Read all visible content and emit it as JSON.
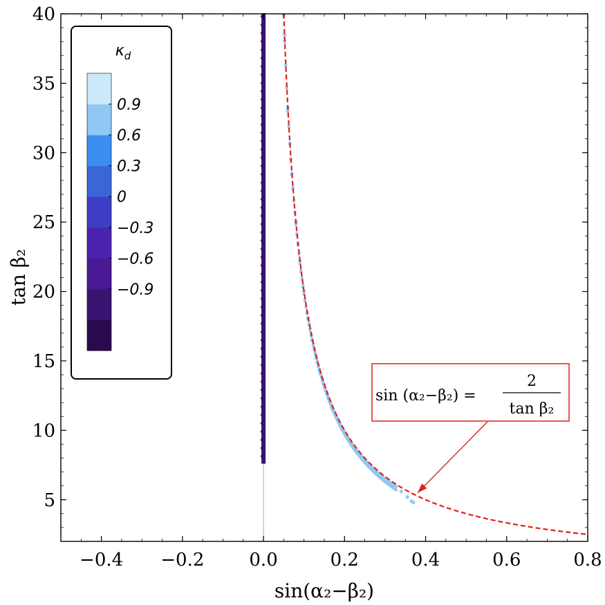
{
  "chart_data": {
    "type": "scatter",
    "xlabel": "sin(α₂−β₂)",
    "ylabel": "tan β₂",
    "xlim": [
      -0.5,
      0.8
    ],
    "ylim": [
      2.0,
      40.0
    ],
    "x_ticks": [
      -0.4,
      -0.2,
      0.0,
      0.2,
      0.4,
      0.6,
      0.8
    ],
    "x_tick_labels": [
      "−0.4",
      "−0.2",
      "0.0",
      "0.2",
      "0.4",
      "0.6",
      "0.8"
    ],
    "y_ticks": [
      5,
      10,
      15,
      20,
      25,
      30,
      35,
      40
    ],
    "y_tick_labels": [
      "5",
      "10",
      "15",
      "20",
      "25",
      "30",
      "35",
      "40"
    ],
    "grid": false,
    "legend": {
      "title": "κ_d",
      "placement": "top-left",
      "colors": [
        "#2b0a4f",
        "#3a1270",
        "#4a1a96",
        "#4a22b0",
        "#3f3fc6",
        "#3b66d8",
        "#3b8ff0",
        "#90c8f4",
        "#cce9fb"
      ],
      "tick_labels": [
        "0.9",
        "0.6",
        "0.3",
        "0",
        "−0.3",
        "−0.6",
        "−0.9"
      ]
    },
    "series": [
      {
        "points": {
          "x": 0.0,
          "y_range": [
            7.6,
            40.0
          ]
        },
        "color": "#3a1270",
        "kappa_d": -1.0
      },
      {
        "points": [
          [
            0.052,
            38.5
          ],
          [
            0.06,
            33
          ],
          [
            0.07,
            28.5
          ],
          [
            0.08,
            25
          ],
          [
            0.09,
            22.2
          ],
          [
            0.1,
            20
          ],
          [
            0.11,
            18.1
          ],
          [
            0.12,
            16.5
          ],
          [
            0.13,
            15.2
          ],
          [
            0.14,
            14.1
          ],
          [
            0.15,
            13.1
          ],
          [
            0.16,
            12.3
          ],
          [
            0.17,
            11.5
          ],
          [
            0.18,
            10.9
          ],
          [
            0.19,
            10.3
          ],
          [
            0.2,
            9.8
          ],
          [
            0.21,
            9.3
          ],
          [
            0.22,
            8.9
          ],
          [
            0.23,
            8.5
          ],
          [
            0.24,
            8.1
          ],
          [
            0.25,
            7.8
          ],
          [
            0.26,
            7.5
          ],
          [
            0.27,
            7.2
          ],
          [
            0.28,
            6.9
          ],
          [
            0.29,
            6.6
          ],
          [
            0.3,
            6.4
          ],
          [
            0.31,
            6.2
          ],
          [
            0.32,
            6.0
          ],
          [
            0.34,
            5.6
          ],
          [
            0.355,
            5.2
          ],
          [
            0.365,
            4.9
          ],
          [
            0.37,
            4.8
          ]
        ],
        "color": "#90c8f4",
        "kappa_d": 0.9
      }
    ],
    "reference_curve": {
      "equation": "sin(α₂−β₂) = 2 / tan β₂",
      "x_range": [
        0.05,
        0.8
      ],
      "style": "dashed",
      "color": "#e0201a"
    },
    "annotation": {
      "lhs": "sin (α₂−β₂) =",
      "numerator": "2",
      "denominator": "tan β₂",
      "box_color": "#e0201a",
      "points_to": [
        0.37,
        5.4
      ]
    }
  }
}
